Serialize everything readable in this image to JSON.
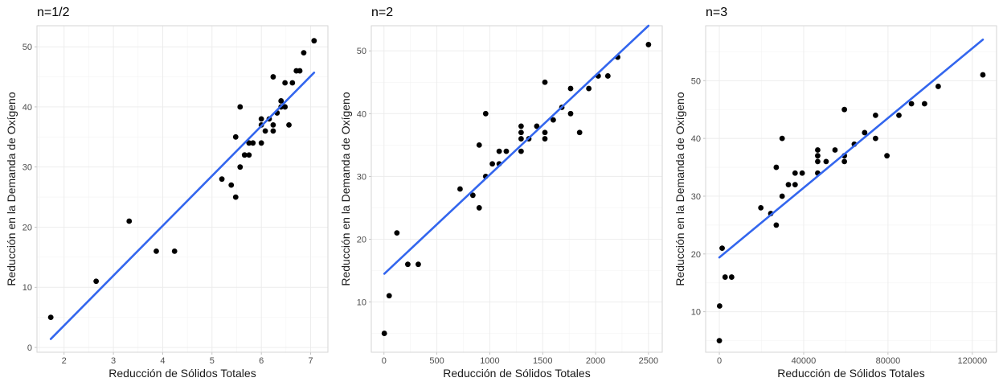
{
  "colors": {
    "point": "#000000",
    "fit_line": "#3366ee",
    "grid": "#ebebeb",
    "border": "#d6d6d6"
  },
  "chart_data": [
    {
      "type": "scatter",
      "title": "n=1/2",
      "xlabel": "Reducción de Sólidos Totales",
      "ylabel": "Reducción en la Demanda de Oxígeno",
      "xlim": [
        1.45,
        7.35
      ],
      "ylim": [
        -0.8,
        53.5
      ],
      "xticks": [
        2,
        3,
        4,
        5,
        6,
        7
      ],
      "yticks": [
        0,
        10,
        20,
        30,
        40,
        50
      ],
      "x": [
        1.73,
        2.65,
        3.32,
        3.87,
        4.24,
        5.2,
        5.39,
        5.48,
        5.48,
        5.57,
        5.57,
        5.66,
        5.66,
        5.75,
        5.75,
        5.83,
        6.0,
        6.0,
        6.0,
        6.08,
        6.16,
        6.24,
        6.24,
        6.24,
        6.32,
        6.4,
        6.4,
        6.48,
        6.48,
        6.56,
        6.63,
        6.71,
        6.78,
        6.86,
        7.07
      ],
      "y": [
        5,
        11,
        21,
        16,
        16,
        28,
        27,
        25,
        35,
        30,
        40,
        32,
        32,
        34,
        32,
        34,
        34,
        37,
        38,
        36,
        38,
        37,
        36,
        45,
        39,
        41,
        40,
        44,
        40,
        37,
        44,
        46,
        46,
        49,
        51
      ],
      "fit": {
        "x": [
          1.73,
          7.07
        ],
        "y": [
          1.4,
          45.7
        ]
      },
      "grid": true,
      "legend": "none"
    },
    {
      "type": "scatter",
      "title": "n=2",
      "xlabel": "Reducción de Sólidos Totales",
      "ylabel": "Reducción en la Demanda de Oxígeno",
      "xlim": [
        -120,
        2630
      ],
      "ylim": [
        2.0,
        54.0
      ],
      "xticks": [
        0,
        500,
        1000,
        1500,
        2000,
        2500
      ],
      "yticks": [
        10,
        20,
        30,
        40,
        50
      ],
      "x": [
        3,
        49,
        122,
        225,
        324,
        719,
        840,
        900,
        900,
        961,
        961,
        1024,
        1089,
        1089,
        1156,
        1296,
        1296,
        1296,
        1296,
        1369,
        1444,
        1521,
        1521,
        1521,
        1600,
        1681,
        1764,
        1764,
        1849,
        1936,
        2025,
        2116,
        2209,
        2500
      ],
      "y": [
        5,
        11,
        21,
        16,
        16,
        28,
        27,
        25,
        35,
        30,
        40,
        32,
        34,
        32,
        34,
        34,
        37,
        38,
        36,
        36,
        38,
        37,
        36,
        45,
        39,
        41,
        40,
        44,
        37,
        44,
        46,
        46,
        49,
        51
      ],
      "fit": {
        "x": [
          3,
          2500
        ],
        "y": [
          14.5,
          54.0
        ]
      },
      "grid": true,
      "legend": "none"
    },
    {
      "type": "scatter",
      "title": "n=3",
      "xlabel": "Reducción de Sólidos Totales",
      "ylabel": "Reducción en la Demanda de Oxígeno",
      "xlim": [
        -6500,
        131500
      ],
      "ylim": [
        3.0,
        59.5
      ],
      "xticks": [
        0,
        40000,
        80000,
        120000
      ],
      "xtick_labels": [
        "0",
        "40000",
        "80000",
        "120000"
      ],
      "yticks": [
        10,
        20,
        30,
        40,
        50
      ],
      "x": [
        5,
        125,
        1331,
        2744,
        5832,
        19683,
        24389,
        27000,
        27000,
        29791,
        29791,
        32768,
        35937,
        35937,
        39304,
        46656,
        46656,
        46656,
        46656,
        50653,
        54872,
        59319,
        59319,
        59319,
        64000,
        68921,
        74088,
        74088,
        79507,
        85184,
        91125,
        97336,
        103823,
        125000
      ],
      "y": [
        5,
        11,
        21,
        16,
        16,
        28,
        27,
        25,
        35,
        30,
        40,
        32,
        34,
        32,
        34,
        34,
        37,
        38,
        36,
        36,
        38,
        37,
        36,
        45,
        39,
        41,
        40,
        44,
        37,
        44,
        46,
        46,
        49,
        51
      ],
      "fit": {
        "x": [
          0,
          125000
        ],
        "y": [
          19.4,
          57.1
        ]
      },
      "grid": true,
      "legend": "none"
    }
  ]
}
